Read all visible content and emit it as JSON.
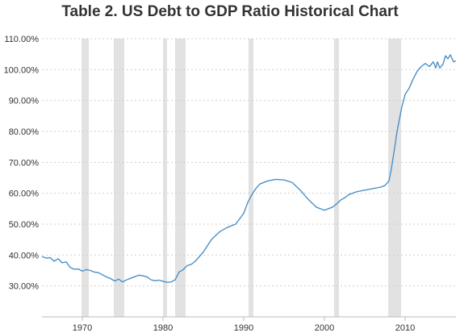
{
  "title": "Table 2. US Debt to GDP Ratio Historical Chart",
  "colors": {
    "line": "#4a90c8",
    "recession": "#e2e2e2",
    "grid": "#cfcfcf",
    "axis": "#bbbbbb"
  },
  "chart_data": {
    "type": "line",
    "title": "Table 2. US Debt to GDP Ratio Historical Chart",
    "xlabel": "",
    "ylabel": "",
    "xlim": [
      1965,
      2016.3
    ],
    "ylim": [
      20,
      110
    ],
    "grid": "horizontal dashed",
    "legend": "none",
    "y_ticks": [
      {
        "value": 30,
        "label": "30.00%"
      },
      {
        "value": 40,
        "label": "40.00%"
      },
      {
        "value": 50,
        "label": "50.00%"
      },
      {
        "value": 60,
        "label": "60.00%"
      },
      {
        "value": 70,
        "label": "70.00%"
      },
      {
        "value": 80,
        "label": "80.00%"
      },
      {
        "value": 90,
        "label": "90.00%"
      },
      {
        "value": 100,
        "label": "100.00%"
      },
      {
        "value": 110,
        "label": "110.00%"
      }
    ],
    "x_ticks": [
      {
        "value": 1970,
        "label": "1970"
      },
      {
        "value": 1980,
        "label": "1980"
      },
      {
        "value": 1990,
        "label": "1990"
      },
      {
        "value": 2000,
        "label": "2000"
      },
      {
        "value": 2010,
        "label": "2010"
      }
    ],
    "recessions": [
      [
        1969.9,
        1970.8
      ],
      [
        1973.9,
        1975.2
      ],
      [
        1980.0,
        1980.5
      ],
      [
        1981.5,
        1982.8
      ],
      [
        1990.6,
        1991.2
      ],
      [
        2001.2,
        2001.8
      ],
      [
        2007.9,
        2009.5
      ]
    ],
    "series": [
      {
        "x": [
          1965.0,
          1965.6,
          1966.0,
          1966.5,
          1967.0,
          1967.5,
          1968.0,
          1968.5,
          1969.0,
          1969.5,
          1970.0,
          1970.5,
          1971.0,
          1971.5,
          1972.0,
          1972.5,
          1973.0,
          1973.5,
          1974.0,
          1974.5,
          1975.0,
          1975.5,
          1976.0,
          1976.5,
          1977.0,
          1977.5,
          1978.0,
          1978.5,
          1979.0,
          1979.5,
          1980.0,
          1980.5,
          1981.0,
          1981.5,
          1982.0,
          1982.5,
          1983.0,
          1983.5,
          1984.0,
          1985.0,
          1986.0,
          1987.0,
          1988.0,
          1989.0,
          1990.0,
          1990.5,
          1991.0,
          1991.5,
          1992.0,
          1993.0,
          1994.0,
          1995.0,
          1996.0,
          1997.0,
          1998.0,
          1999.0,
          2000.0,
          2000.5,
          2001.0,
          2001.5,
          2002.0,
          2002.5,
          2003.0,
          2004.0,
          2005.0,
          2006.0,
          2007.0,
          2007.5,
          2008.0,
          2008.3,
          2008.6,
          2009.0,
          2009.3,
          2009.6,
          2010.0,
          2010.5,
          2011.0,
          2011.5,
          2012.0,
          2012.5,
          2013.0,
          2013.5,
          2013.8,
          2014.0,
          2014.3,
          2014.7,
          2015.0,
          2015.3,
          2015.6,
          2016.0,
          2016.3
        ],
        "y": [
          39.5,
          39.0,
          39.2,
          38.0,
          38.8,
          37.5,
          37.8,
          36.0,
          35.4,
          35.5,
          34.8,
          35.3,
          35.0,
          34.5,
          34.3,
          33.6,
          32.9,
          32.4,
          31.6,
          32.2,
          31.3,
          32.0,
          32.5,
          33.0,
          33.5,
          33.3,
          33.0,
          32.0,
          31.7,
          31.9,
          31.5,
          31.2,
          31.3,
          32.0,
          34.5,
          35.3,
          36.6,
          37.0,
          38.0,
          41.0,
          45.0,
          47.5,
          49.0,
          50.0,
          53.5,
          57.0,
          59.5,
          61.5,
          63.0,
          64.0,
          64.5,
          64.3,
          63.5,
          61.0,
          58.0,
          55.5,
          54.5,
          55.0,
          55.5,
          56.5,
          57.8,
          58.5,
          59.5,
          60.5,
          61.0,
          61.5,
          62.0,
          62.5,
          64.0,
          68.0,
          73.0,
          80.0,
          84.0,
          88.0,
          92.0,
          94.0,
          97.0,
          99.5,
          101.0,
          102.0,
          101.0,
          102.5,
          100.5,
          102.5,
          100.5,
          101.8,
          104.5,
          103.5,
          104.8,
          102.5,
          102.8
        ]
      }
    ]
  }
}
